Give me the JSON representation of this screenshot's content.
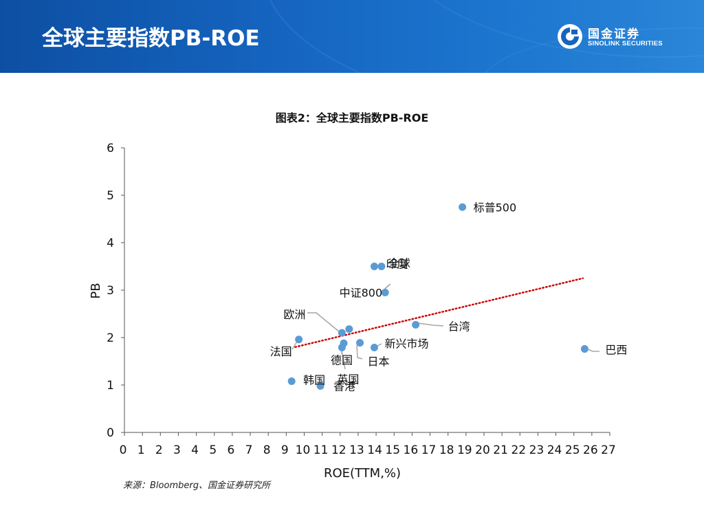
{
  "header": {
    "title": "全球主要指数PB-ROE",
    "logo_cn": "国金证券",
    "logo_en": "SINOLINK SECURITIES"
  },
  "colors": {
    "header_blue": "#1565c0",
    "point": "#5b9bd5",
    "trendline": "#cc0000",
    "leader": "#a6a6a6"
  },
  "chart_data": {
    "type": "scatter",
    "title": "图表2：全球主要指数PB-ROE",
    "xlabel": "ROE(TTM,%)",
    "ylabel": "PB",
    "xlim": [
      0,
      27
    ],
    "ylim": [
      0,
      6
    ],
    "xticks": [
      0,
      1,
      2,
      3,
      4,
      5,
      6,
      7,
      8,
      9,
      10,
      11,
      12,
      13,
      14,
      15,
      16,
      17,
      18,
      19,
      20,
      21,
      22,
      23,
      24,
      25,
      26,
      27
    ],
    "yticks": [
      0,
      1,
      2,
      3,
      4,
      5,
      6
    ],
    "grid": false,
    "legend": "none",
    "points": [
      {
        "label": "标普500",
        "x": 18.8,
        "y": 4.75
      },
      {
        "label": "印度",
        "x": 13.9,
        "y": 3.5
      },
      {
        "label": "全球",
        "x": 14.3,
        "y": 3.5
      },
      {
        "label": "中证800",
        "x": 14.5,
        "y": 2.95
      },
      {
        "label": "台湾",
        "x": 16.2,
        "y": 2.27
      },
      {
        "label": "欧洲",
        "x": 12.1,
        "y": 2.1
      },
      {
        "label": "",
        "x": 12.5,
        "y": 2.18
      },
      {
        "label": "法国",
        "x": 9.7,
        "y": 1.96
      },
      {
        "label": "新兴市场",
        "x": 13.9,
        "y": 1.79
      },
      {
        "label": "德国",
        "x": 12.2,
        "y": 1.88
      },
      {
        "label": "日本",
        "x": 13.1,
        "y": 1.89
      },
      {
        "label": "英国",
        "x": 12.1,
        "y": 1.79
      },
      {
        "label": "巴西",
        "x": 25.6,
        "y": 1.76
      },
      {
        "label": "韩国",
        "x": 9.3,
        "y": 1.08
      },
      {
        "label": "香港",
        "x": 10.9,
        "y": 0.98
      }
    ],
    "trendline": {
      "from": [
        9.5,
        1.8
      ],
      "to": [
        25.5,
        3.25
      ]
    }
  },
  "source_note": "来源：Bloomberg、国金证券研究所"
}
